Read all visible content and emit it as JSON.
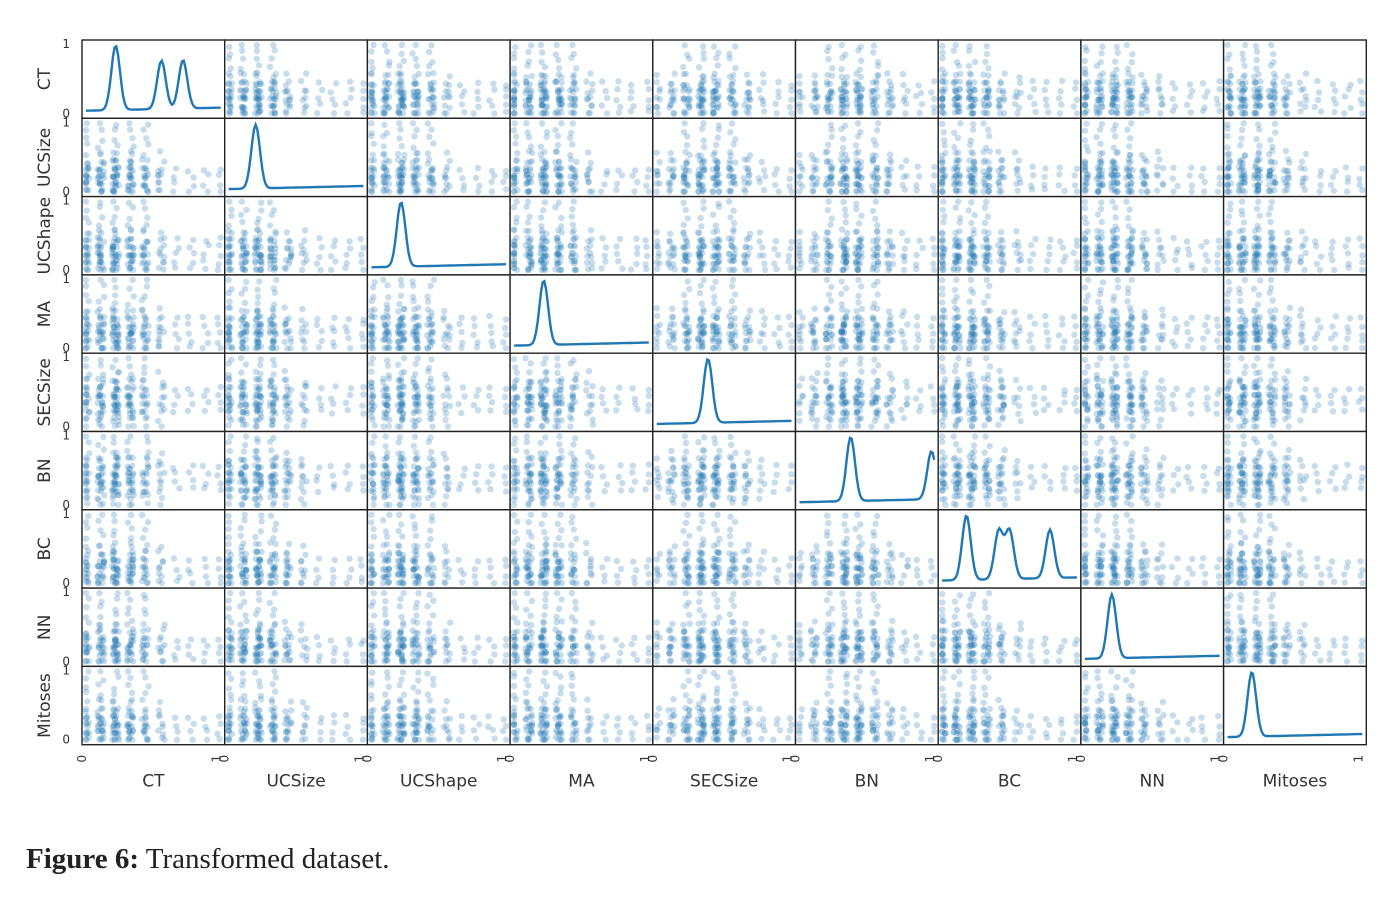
{
  "chart_data": {
    "type": "scatter",
    "subtype": "scatter-matrix",
    "variables": [
      "CT",
      "UCSize",
      "UCShape",
      "MA",
      "SECSize",
      "BN",
      "BC",
      "NN",
      "Mitoses"
    ],
    "axis_range": [
      0,
      1
    ],
    "tick_labels": [
      "0",
      "1"
    ],
    "diagonal": "kde",
    "marker_color": "#1f77b4",
    "marker_alpha": 0.25,
    "grid": false,
    "distinct_levels": {
      "CT": [
        0,
        0.11,
        0.22,
        0.33,
        0.44,
        0.56,
        0.67,
        0.78,
        0.89,
        1
      ],
      "UCSize": [
        0,
        0.11,
        0.22,
        0.33,
        0.44,
        0.56,
        0.67,
        0.78,
        0.89,
        1
      ],
      "UCShape": [
        0,
        0.11,
        0.22,
        0.33,
        0.44,
        0.56,
        0.67,
        0.78,
        0.89,
        1
      ],
      "MA": [
        0,
        0.11,
        0.22,
        0.33,
        0.44,
        0.56,
        0.67,
        0.78,
        0.89,
        1
      ],
      "SECSize": [
        0,
        0.11,
        0.22,
        0.33,
        0.44,
        0.56,
        0.67,
        0.78,
        0.89,
        1
      ],
      "BN": [
        0,
        0.11,
        0.22,
        0.33,
        0.44,
        0.56,
        0.67,
        0.78,
        0.89,
        1
      ],
      "BC": [
        0,
        0.11,
        0.22,
        0.33,
        0.44,
        0.56,
        0.67,
        0.78,
        0.89,
        1
      ],
      "NN": [
        0,
        0.11,
        0.22,
        0.33,
        0.44,
        0.56,
        0.67,
        0.78,
        0.89,
        1
      ],
      "Mitoses": [
        0,
        0.11,
        0.22,
        0.33,
        0.44,
        0.56,
        0.67,
        0.78,
        0.89,
        1
      ]
    },
    "kde_peaks": {
      "CT": [
        0.22,
        0.56,
        0.72
      ],
      "UCSize": [
        0.2
      ],
      "UCShape": [
        0.22
      ],
      "MA": [
        0.22
      ],
      "SECSize": [
        0.38
      ],
      "BN": [
        0.38,
        0.98
      ],
      "BC": [
        0.18,
        0.42,
        0.5,
        0.8
      ],
      "NN": [
        0.2
      ],
      "Mitoses": [
        0.18
      ]
    }
  },
  "caption": {
    "label": "Figure 6:",
    "text": " Transformed dataset."
  }
}
